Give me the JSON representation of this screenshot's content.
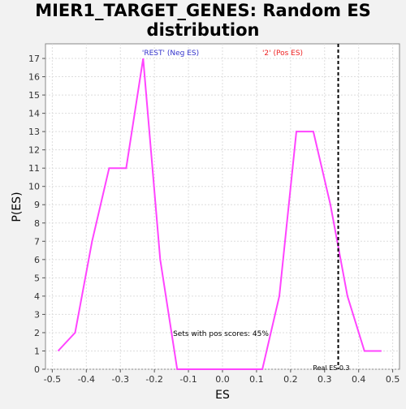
{
  "chart_data": {
    "type": "line",
    "title_line1": "MIER1_TARGET_GENES: Random ES",
    "title_line2": "distribution",
    "xlabel": "ES",
    "ylabel": "P(ES)",
    "xlim": [
      -0.52,
      0.52
    ],
    "ylim": [
      0,
      17.8
    ],
    "x_ticks": [
      -0.5,
      -0.4,
      -0.3,
      -0.2,
      -0.1,
      0.0,
      0.1,
      0.2,
      0.3,
      0.4,
      0.5
    ],
    "x_tick_labels": [
      "-0.5",
      "-0.4",
      "-0.3",
      "-0.2",
      "-0.1",
      "0.0",
      "0.1",
      "0.2",
      "0.3",
      "0.4",
      "0.5"
    ],
    "y_ticks": [
      0,
      1,
      2,
      3,
      4,
      5,
      6,
      7,
      8,
      9,
      10,
      11,
      12,
      13,
      14,
      15,
      16,
      17
    ],
    "grid": true,
    "line_color": "#ff44ff",
    "series": [
      {
        "x": [
          -0.483,
          -0.433,
          -0.383,
          -0.333,
          -0.283,
          -0.233,
          -0.183,
          -0.133,
          -0.083,
          -0.033,
          0.017,
          0.067,
          0.117,
          0.167,
          0.217,
          0.267,
          0.317,
          0.367,
          0.417,
          0.467
        ],
        "values": [
          1,
          2,
          7,
          11,
          11,
          17,
          6,
          0,
          0,
          0,
          0,
          0,
          0,
          4,
          13,
          13,
          9,
          4,
          1,
          1
        ]
      }
    ],
    "real_es": 0.34,
    "annotations": {
      "neg_label": "'REST' (Neg ES)",
      "pos_label": "'2' (Pos ES)",
      "neg_color": "#3333cc",
      "pos_color": "#ee2222",
      "pos_scores": "Sets with pos scores: 45%",
      "real_es_label": "Real ES 0.3"
    }
  }
}
